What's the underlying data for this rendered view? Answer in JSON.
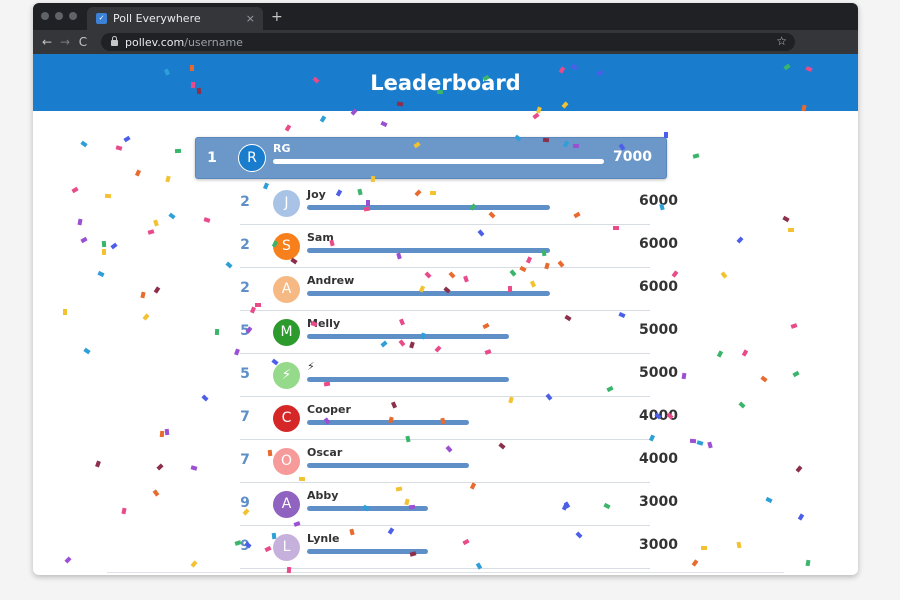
{
  "browser": {
    "tab_title": "Poll Everywhere",
    "tab_favicon": "poll-everywhere-favicon",
    "close_label": "×",
    "new_tab_label": "+",
    "back_label": "←",
    "forward_label": "→",
    "reload_label": "C",
    "url_host": "pollev.com",
    "url_path": "/username",
    "star_label": "☆"
  },
  "header": {
    "title": "Leaderboard",
    "color": "#1a7ccd"
  },
  "leaderboard": [
    {
      "rank": "1",
      "initial": "R",
      "name": "RG",
      "score": "7000",
      "progress": 1.0,
      "avatar_color": "#1a7ccd"
    },
    {
      "rank": "2",
      "initial": "J",
      "name": "Joy",
      "score": "6000",
      "progress": 0.857,
      "avatar_color": "#a9c3e6"
    },
    {
      "rank": "2",
      "initial": "S",
      "name": "Sam",
      "score": "6000",
      "progress": 0.857,
      "avatar_color": "#f77f1c"
    },
    {
      "rank": "2",
      "initial": "A",
      "name": "Andrew",
      "score": "6000",
      "progress": 0.857,
      "avatar_color": "#f7b984"
    },
    {
      "rank": "5",
      "initial": "M",
      "name": "Melly",
      "score": "5000",
      "progress": 0.714,
      "avatar_color": "#2d9a2d"
    },
    {
      "rank": "5",
      "initial": "⚡",
      "name": "⚡",
      "score": "5000",
      "progress": 0.714,
      "avatar_color": "#95d98a"
    },
    {
      "rank": "7",
      "initial": "C",
      "name": "Cooper",
      "score": "4000",
      "progress": 0.571,
      "avatar_color": "#d62728"
    },
    {
      "rank": "7",
      "initial": "O",
      "name": "Oscar",
      "score": "4000",
      "progress": 0.571,
      "avatar_color": "#f79a9a"
    },
    {
      "rank": "9",
      "initial": "A",
      "name": "Abby",
      "score": "3000",
      "progress": 0.429,
      "avatar_color": "#8f63bf"
    },
    {
      "rank": "9",
      "initial": "L",
      "name": "Lynle",
      "score": "3000",
      "progress": 0.429,
      "avatar_color": "#c6b1dc"
    }
  ],
  "colors": {
    "accent": "#5e8fc6",
    "highlight_row": "#6b97c9",
    "confetti": [
      "#e94b8a",
      "#4b5fe9",
      "#3ab56b",
      "#f2c230",
      "#9b4fd1",
      "#2f9fd8",
      "#e86a2f",
      "#8b2f4a"
    ]
  }
}
